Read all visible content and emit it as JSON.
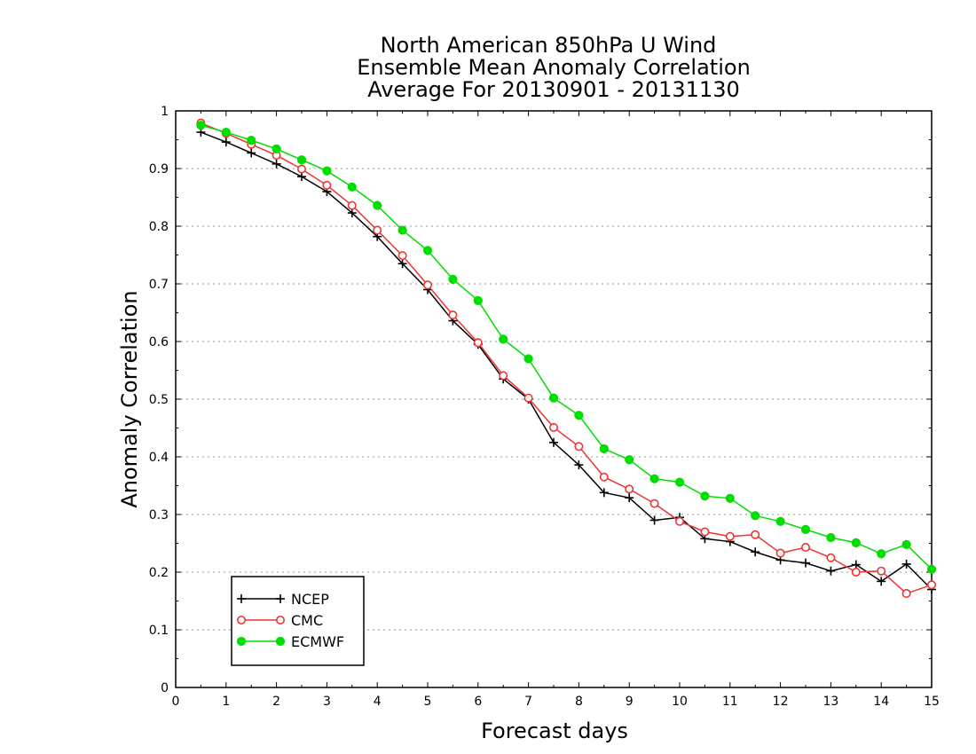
{
  "chart_data": {
    "type": "line",
    "title_lines": [
      "North American 850hPa U Wind",
      "Ensemble Mean Anomaly Correlation",
      "Average For 20130901 - 20131130"
    ],
    "xlabel": "Forecast days",
    "ylabel": "Anomaly Correlation",
    "xlim": [
      0,
      15
    ],
    "ylim": [
      0,
      1
    ],
    "x_ticks": [
      "0",
      "1",
      "2",
      "3",
      "4",
      "5",
      "6",
      "7",
      "8",
      "9",
      "10",
      "11",
      "12",
      "13",
      "14",
      "15"
    ],
    "y_ticks": [
      "0",
      "0.1",
      "0.2",
      "0.3",
      "0.4",
      "0.5",
      "0.6",
      "0.7",
      "0.8",
      "0.9",
      "1"
    ],
    "grid": "horizontal dotted",
    "legend_position": "bottom-left",
    "x": [
      0.5,
      1,
      1.5,
      2,
      2.5,
      3,
      3.5,
      4,
      4.5,
      5,
      5.5,
      6,
      6.5,
      7,
      7.5,
      8,
      8.5,
      9,
      9.5,
      10,
      10.5,
      11,
      11.5,
      12,
      12.5,
      13,
      13.5,
      14,
      14.5,
      15
    ],
    "series": [
      {
        "name": "NCEP",
        "color": "#000000",
        "marker": "plus",
        "values": [
          0.963,
          0.946,
          0.927,
          0.908,
          0.886,
          0.86,
          0.823,
          0.782,
          0.735,
          0.69,
          0.636,
          0.595,
          0.535,
          0.5,
          0.425,
          0.386,
          0.338,
          0.329,
          0.29,
          0.295,
          0.258,
          0.253,
          0.235,
          0.221,
          0.216,
          0.202,
          0.213,
          0.184,
          0.214,
          0.17
        ]
      },
      {
        "name": "CMC",
        "color": "#ee3333",
        "marker": "open-circle",
        "values": [
          0.979,
          0.961,
          0.942,
          0.923,
          0.899,
          0.871,
          0.836,
          0.793,
          0.749,
          0.698,
          0.646,
          0.598,
          0.541,
          0.502,
          0.451,
          0.418,
          0.365,
          0.344,
          0.319,
          0.288,
          0.27,
          0.262,
          0.265,
          0.233,
          0.243,
          0.225,
          0.2,
          0.202,
          0.163,
          0.178
        ]
      },
      {
        "name": "ECMWF",
        "color": "#00dd00",
        "marker": "filled-circle",
        "values": [
          0.975,
          0.963,
          0.949,
          0.934,
          0.915,
          0.896,
          0.868,
          0.836,
          0.793,
          0.758,
          0.708,
          0.671,
          0.604,
          0.57,
          0.502,
          0.472,
          0.414,
          0.395,
          0.362,
          0.356,
          0.332,
          0.328,
          0.298,
          0.288,
          0.274,
          0.26,
          0.251,
          0.232,
          0.248,
          0.205
        ]
      }
    ]
  }
}
